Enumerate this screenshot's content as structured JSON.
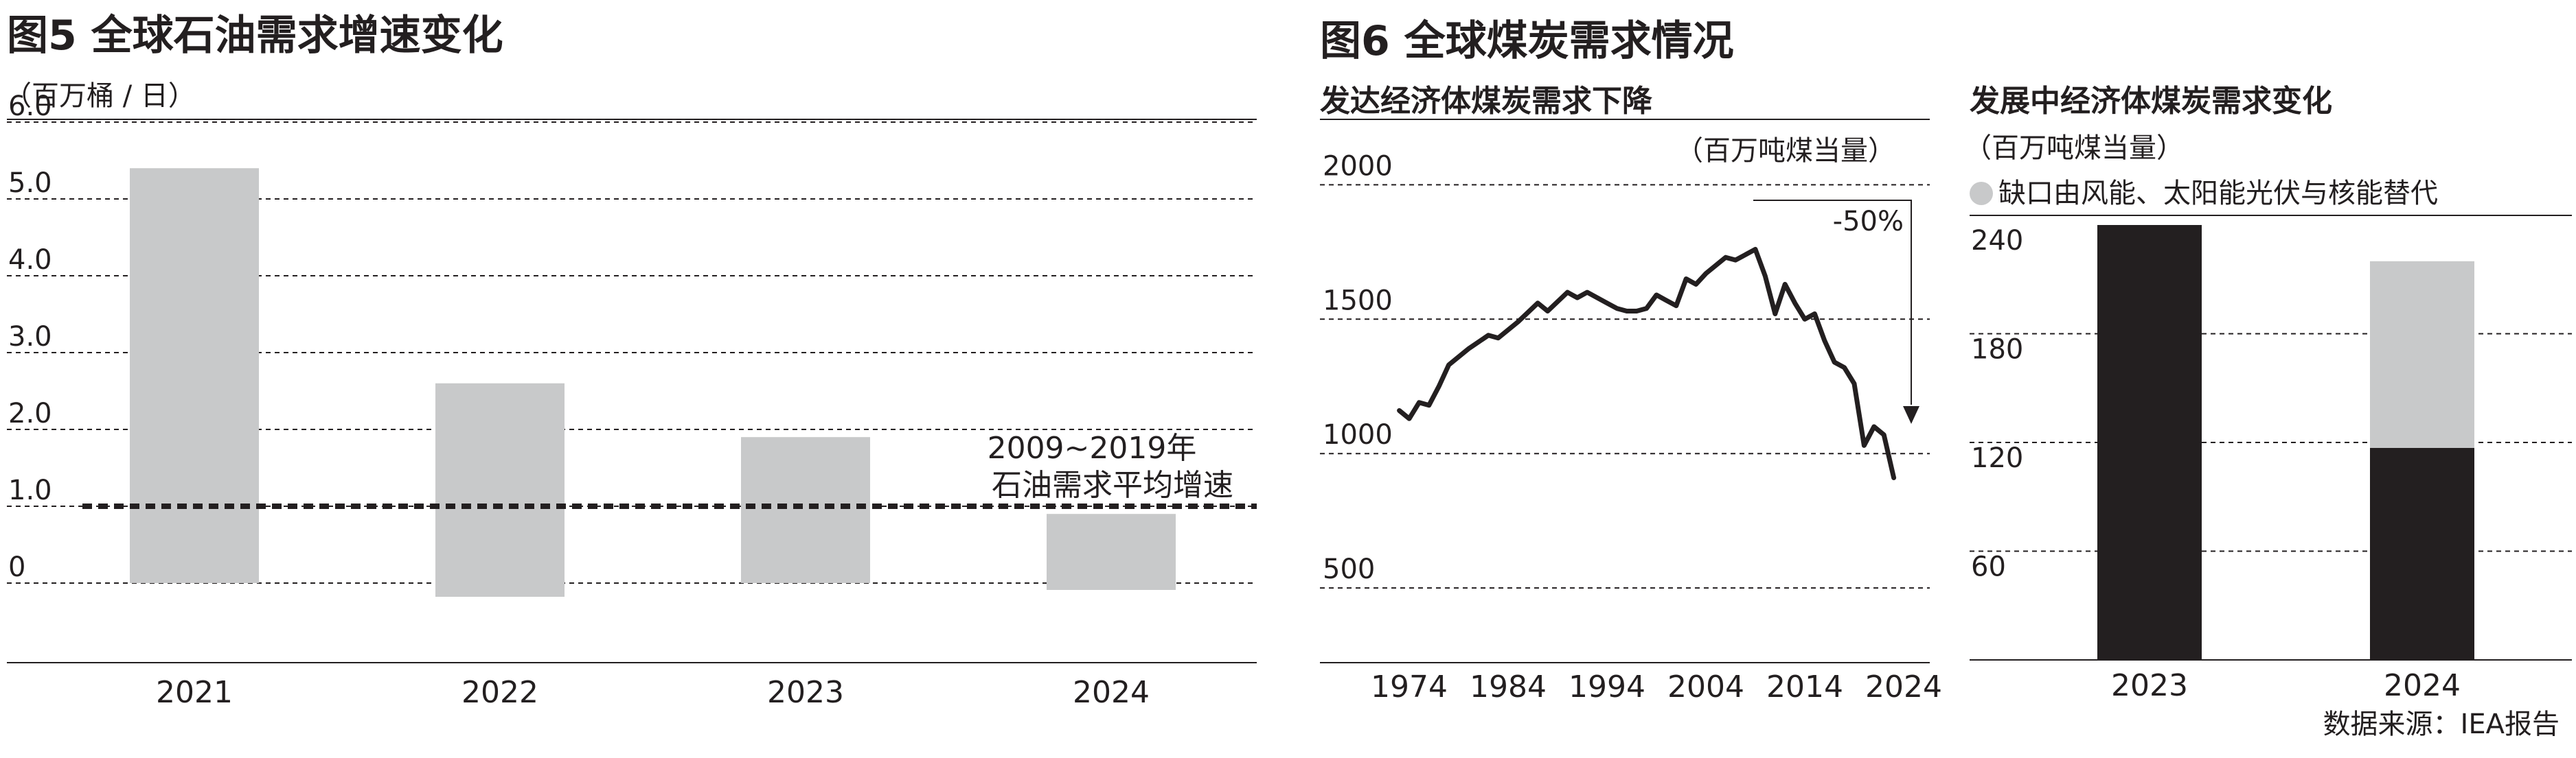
{
  "fig5": {
    "title": "图5 全球石油需求增速变化",
    "unit": "（百万桶 / 日）",
    "annotation_line1": "2009~2019年",
    "annotation_line2": "石油需求平均增速"
  },
  "fig6": {
    "title": "图6 全球煤炭需求情况",
    "left_title": "发达经济体煤炭需求下降",
    "left_unit": "（百万吨煤当量）",
    "drop_label": "-50%",
    "right_title": "发展中经济体煤炭需求变化",
    "right_unit": "（百万吨煤当量）",
    "legend_label": "缺口由风能、太阳能光伏与核能替代"
  },
  "source": "数据来源：IEA报告",
  "colors": {
    "bar_gray": "#c8c9ca",
    "dark": "#231f20",
    "grid": "#231f20"
  },
  "chart_data": [
    {
      "type": "bar",
      "title": "图5 全球石油需求增速变化",
      "ylabel": "（百万桶 / 日）",
      "categories": [
        "2021",
        "2022",
        "2023",
        "2024"
      ],
      "values": [
        5.4,
        2.6,
        1.9,
        0.9
      ],
      "yticks": [
        "6.0",
        "5.0",
        "4.0",
        "3.0",
        "2.0",
        "1.0",
        "0"
      ],
      "tick_values": [
        6,
        5,
        4,
        3,
        2,
        1,
        0
      ],
      "ylim": [
        -1,
        6
      ],
      "reference_line": {
        "value": 1.0,
        "label": "2009~2019年 石油需求平均增速"
      },
      "grid": true
    },
    {
      "type": "line",
      "title": "发达经济体煤炭需求下降",
      "ylabel": "（百万吨煤当量）",
      "x": [
        1973,
        1974,
        1975,
        1976,
        1977,
        1978,
        1980,
        1982,
        1983,
        1985,
        1987,
        1988,
        1990,
        1991,
        1992,
        1994,
        1995,
        1996,
        1997,
        1998,
        1999,
        2000,
        2001,
        2002,
        2003,
        2004,
        2005,
        2006,
        2007,
        2008,
        2009,
        2010,
        2011,
        2012,
        2013,
        2014,
        2015,
        2016,
        2017,
        2018,
        2019,
        2020,
        2021,
        2022,
        2023
      ],
      "y": [
        1160,
        1130,
        1190,
        1180,
        1250,
        1330,
        1390,
        1440,
        1430,
        1490,
        1560,
        1530,
        1600,
        1580,
        1600,
        1560,
        1540,
        1530,
        1530,
        1540,
        1590,
        1570,
        1550,
        1650,
        1630,
        1670,
        1700,
        1730,
        1720,
        1740,
        1760,
        1660,
        1520,
        1630,
        1560,
        1500,
        1520,
        1420,
        1340,
        1320,
        1260,
        1030,
        1100,
        1070,
        910
      ],
      "xticks": [
        "1974",
        "1984",
        "1994",
        "2004",
        "2014",
        "2024"
      ],
      "xtick_values": [
        1974,
        1984,
        1994,
        2004,
        2014,
        2024
      ],
      "yticks": [
        "2000",
        "1500",
        "1000",
        "500"
      ],
      "ytick_values": [
        2000,
        1500,
        1000,
        500
      ],
      "ylim": [
        0,
        2000
      ],
      "xlim": [
        1970,
        2026
      ],
      "annotation": "-50%",
      "grid": true
    },
    {
      "type": "bar",
      "title": "发展中经济体煤炭需求变化",
      "ylabel": "（百万吨煤当量）",
      "categories": [
        "2023",
        "2024"
      ],
      "series": [
        {
          "name": "",
          "values": [
            240,
            117
          ]
        },
        {
          "name": "缺口由风能、太阳能光伏与核能替代",
          "values": [
            0,
            103
          ]
        }
      ],
      "yticks": [
        "240",
        "180",
        "120",
        "60"
      ],
      "ytick_values": [
        240,
        180,
        120,
        60
      ],
      "ylim": [
        0,
        240
      ],
      "stacked": true,
      "grid": true
    }
  ]
}
